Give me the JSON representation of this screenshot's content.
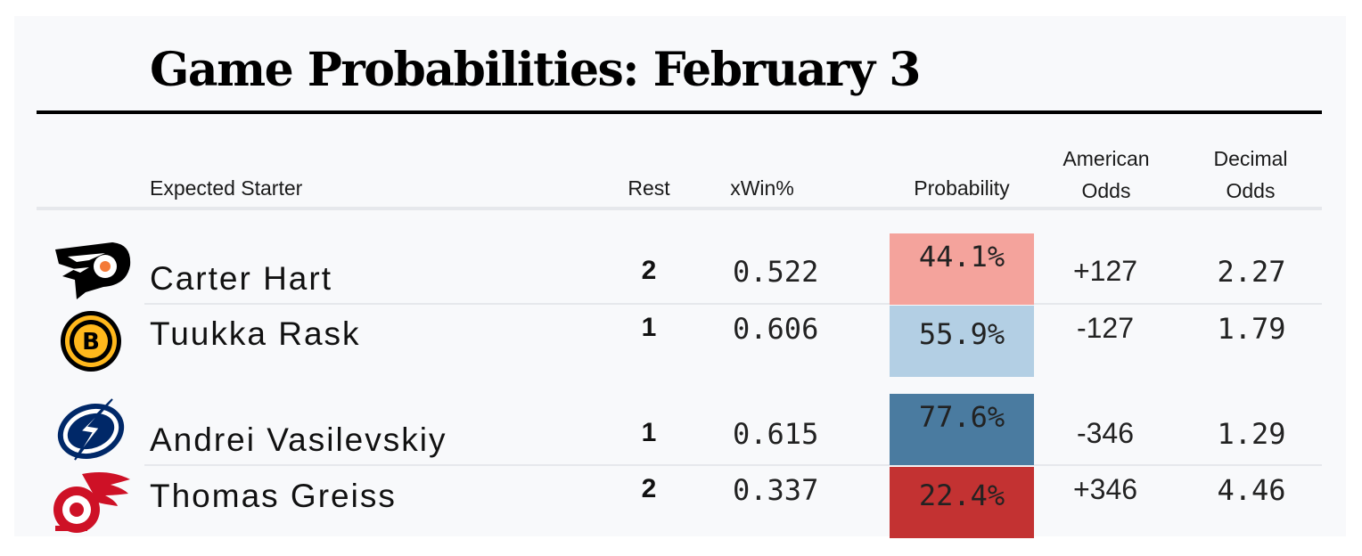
{
  "title": "Game Probabilities: February 3",
  "headers": {
    "starter": "Expected Starter",
    "rest": "Rest",
    "xwin": "xWin%",
    "probability": "Probability",
    "american_line1": "American",
    "american_line2": "Odds",
    "decimal_line1": "Decimal",
    "decimal_line2": "Odds"
  },
  "games": [
    {
      "teams": [
        {
          "logo": "flyers-logo-icon",
          "starter": "Carter Hart",
          "rest": "2",
          "xwin": "0.522",
          "probability": "44.1%",
          "probability_color": "#f4a39c",
          "american_odds": "+127",
          "decimal_odds": "2.27"
        },
        {
          "logo": "bruins-logo-icon",
          "starter": "Tuukka Rask",
          "rest": "1",
          "xwin": "0.606",
          "probability": "55.9%",
          "probability_color": "#b3cfe4",
          "american_odds": "-127",
          "decimal_odds": "1.79"
        }
      ]
    },
    {
      "teams": [
        {
          "logo": "lightning-logo-icon",
          "starter": "Andrei Vasilevskiy",
          "rest": "1",
          "xwin": "0.615",
          "probability": "77.6%",
          "probability_color": "#4a7ba0",
          "american_odds": "-346",
          "decimal_odds": "1.29"
        },
        {
          "logo": "red-wings-logo-icon",
          "starter": "Thomas Greiss",
          "rest": "2",
          "xwin": "0.337",
          "probability": "22.4%",
          "probability_color": "#c33232",
          "american_odds": "+346",
          "decimal_odds": "4.46"
        }
      ]
    }
  ]
}
